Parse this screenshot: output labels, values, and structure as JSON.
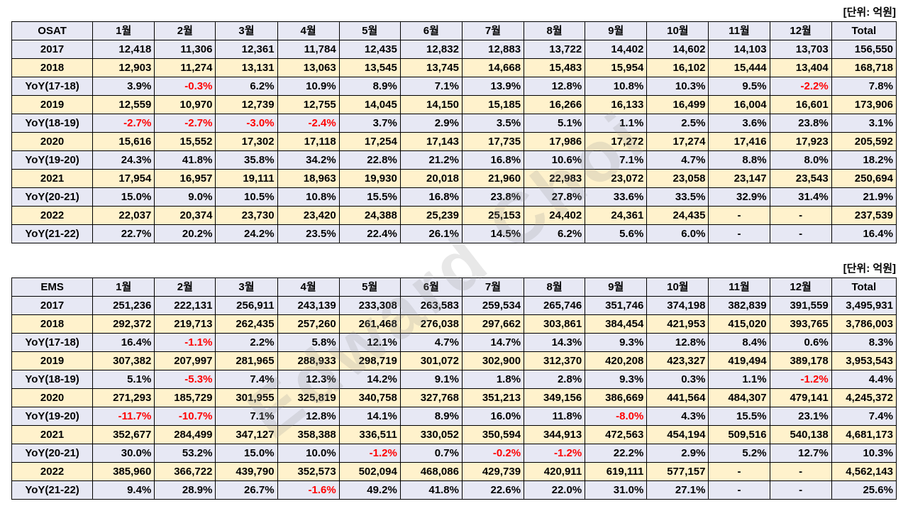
{
  "unit_label": "[단위: 억원]",
  "watermark": "Edward Choi",
  "chart_data": [
    {
      "type": "table",
      "title": "OSAT",
      "columns": [
        "OSAT",
        "1월",
        "2월",
        "3월",
        "4월",
        "5월",
        "6월",
        "7월",
        "8월",
        "9월",
        "10월",
        "11월",
        "12월",
        "Total"
      ],
      "rows": [
        {
          "label": "2017",
          "values": [
            "12,418",
            "11,306",
            "12,361",
            "11,784",
            "12,435",
            "12,832",
            "12,883",
            "13,722",
            "14,402",
            "14,602",
            "14,103",
            "13,703",
            "156,550"
          ]
        },
        {
          "label": "2018",
          "values": [
            "12,903",
            "11,274",
            "13,131",
            "13,063",
            "13,545",
            "13,745",
            "14,668",
            "15,483",
            "15,954",
            "16,102",
            "15,444",
            "13,404",
            "168,718"
          ]
        },
        {
          "label": "YoY(17-18)",
          "values": [
            "3.9%",
            "-0.3%",
            "6.2%",
            "10.9%",
            "8.9%",
            "7.1%",
            "13.9%",
            "12.8%",
            "10.8%",
            "10.3%",
            "9.5%",
            "-2.2%",
            "7.8%"
          ]
        },
        {
          "label": "2019",
          "values": [
            "12,559",
            "10,970",
            "12,739",
            "12,755",
            "14,045",
            "14,150",
            "15,185",
            "16,266",
            "16,133",
            "16,499",
            "16,004",
            "16,601",
            "173,906"
          ]
        },
        {
          "label": "YoY(18-19)",
          "values": [
            "-2.7%",
            "-2.7%",
            "-3.0%",
            "-2.4%",
            "3.7%",
            "2.9%",
            "3.5%",
            "5.1%",
            "1.1%",
            "2.5%",
            "3.6%",
            "23.8%",
            "3.1%"
          ]
        },
        {
          "label": "2020",
          "values": [
            "15,616",
            "15,552",
            "17,302",
            "17,118",
            "17,254",
            "17,143",
            "17,735",
            "17,986",
            "17,272",
            "17,274",
            "17,416",
            "17,923",
            "205,592"
          ]
        },
        {
          "label": "YoY(19-20)",
          "values": [
            "24.3%",
            "41.8%",
            "35.8%",
            "34.2%",
            "22.8%",
            "21.2%",
            "16.8%",
            "10.6%",
            "7.1%",
            "4.7%",
            "8.8%",
            "8.0%",
            "18.2%"
          ]
        },
        {
          "label": "2021",
          "values": [
            "17,954",
            "16,957",
            "19,111",
            "18,963",
            "19,930",
            "20,018",
            "21,960",
            "22,983",
            "23,072",
            "23,058",
            "23,147",
            "23,543",
            "250,694"
          ]
        },
        {
          "label": "YoY(20-21)",
          "values": [
            "15.0%",
            "9.0%",
            "10.5%",
            "10.8%",
            "15.5%",
            "16.8%",
            "23.8%",
            "27.8%",
            "33.6%",
            "33.5%",
            "32.9%",
            "31.4%",
            "21.9%"
          ]
        },
        {
          "label": "2022",
          "values": [
            "22,037",
            "20,374",
            "23,730",
            "23,420",
            "24,388",
            "25,239",
            "25,153",
            "24,402",
            "24,361",
            "24,435",
            "-",
            "-",
            "237,539"
          ]
        },
        {
          "label": "YoY(21-22)",
          "values": [
            "22.7%",
            "20.2%",
            "24.2%",
            "23.5%",
            "22.4%",
            "26.1%",
            "14.5%",
            "6.2%",
            "5.6%",
            "6.0%",
            "-",
            "-",
            "16.4%"
          ]
        }
      ]
    },
    {
      "type": "table",
      "title": "EMS",
      "columns": [
        "EMS",
        "1월",
        "2월",
        "3월",
        "4월",
        "5월",
        "6월",
        "7월",
        "8월",
        "9월",
        "10월",
        "11월",
        "12월",
        "Total"
      ],
      "rows": [
        {
          "label": "2017",
          "values": [
            "251,236",
            "222,131",
            "256,911",
            "243,139",
            "233,308",
            "263,583",
            "259,534",
            "265,746",
            "351,746",
            "374,198",
            "382,839",
            "391,559",
            "3,495,931"
          ]
        },
        {
          "label": "2018",
          "values": [
            "292,372",
            "219,713",
            "262,435",
            "257,260",
            "261,468",
            "276,038",
            "297,662",
            "303,861",
            "384,454",
            "421,953",
            "415,020",
            "393,765",
            "3,786,003"
          ]
        },
        {
          "label": "YoY(17-18)",
          "values": [
            "16.4%",
            "-1.1%",
            "2.2%",
            "5.8%",
            "12.1%",
            "4.7%",
            "14.7%",
            "14.3%",
            "9.3%",
            "12.8%",
            "8.4%",
            "0.6%",
            "8.3%"
          ]
        },
        {
          "label": "2019",
          "values": [
            "307,382",
            "207,997",
            "281,965",
            "288,933",
            "298,719",
            "301,072",
            "302,900",
            "312,370",
            "420,208",
            "423,327",
            "419,494",
            "389,178",
            "3,953,543"
          ]
        },
        {
          "label": "YoY(18-19)",
          "values": [
            "5.1%",
            "-5.3%",
            "7.4%",
            "12.3%",
            "14.2%",
            "9.1%",
            "1.8%",
            "2.8%",
            "9.3%",
            "0.3%",
            "1.1%",
            "-1.2%",
            "4.4%"
          ]
        },
        {
          "label": "2020",
          "values": [
            "271,293",
            "185,729",
            "301,955",
            "325,819",
            "340,758",
            "327,768",
            "351,213",
            "349,156",
            "386,669",
            "441,564",
            "484,307",
            "479,141",
            "4,245,372"
          ]
        },
        {
          "label": "YoY(19-20)",
          "values": [
            "-11.7%",
            "-10.7%",
            "7.1%",
            "12.8%",
            "14.1%",
            "8.9%",
            "16.0%",
            "11.8%",
            "-8.0%",
            "4.3%",
            "15.5%",
            "23.1%",
            "7.4%"
          ]
        },
        {
          "label": "2021",
          "values": [
            "352,677",
            "284,499",
            "347,127",
            "358,388",
            "336,511",
            "330,052",
            "350,594",
            "344,913",
            "472,563",
            "454,194",
            "509,516",
            "540,138",
            "4,681,173"
          ]
        },
        {
          "label": "YoY(20-21)",
          "values": [
            "30.0%",
            "53.2%",
            "15.0%",
            "10.0%",
            "-1.2%",
            "0.7%",
            "-0.2%",
            "-1.2%",
            "22.2%",
            "2.9%",
            "5.2%",
            "12.7%",
            "10.3%"
          ]
        },
        {
          "label": "2022",
          "values": [
            "385,960",
            "366,722",
            "439,790",
            "352,573",
            "502,094",
            "468,086",
            "429,739",
            "420,911",
            "619,111",
            "577,157",
            "-",
            "-",
            "4,562,143"
          ]
        },
        {
          "label": "YoY(21-22)",
          "values": [
            "9.4%",
            "28.9%",
            "26.7%",
            "-1.6%",
            "49.2%",
            "41.8%",
            "22.6%",
            "22.0%",
            "31.0%",
            "27.1%",
            "-",
            "-",
            "25.6%"
          ]
        }
      ]
    }
  ]
}
